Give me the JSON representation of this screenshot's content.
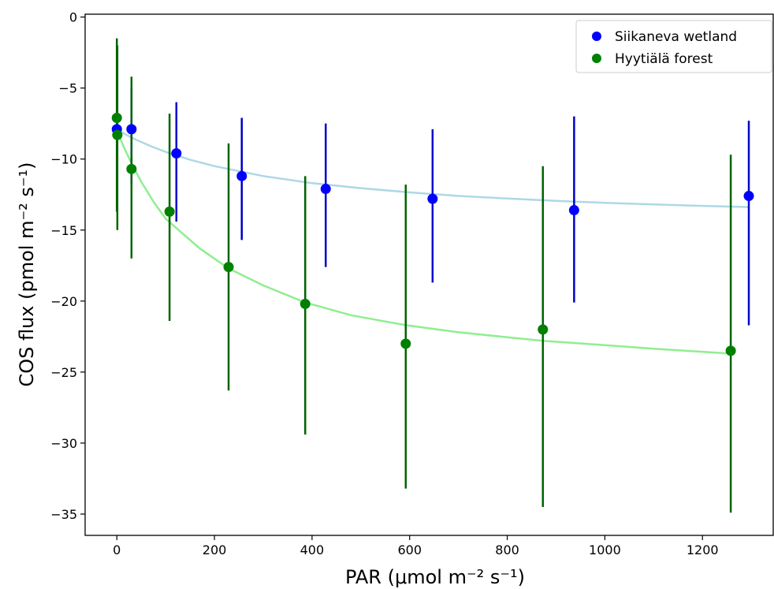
{
  "chart_data": {
    "type": "scatter",
    "xlabel": "PAR (μmol m⁻² s⁻¹)",
    "ylabel": "COS flux (pmol m⁻² s⁻¹)",
    "xlim": [
      -65,
      1345
    ],
    "ylim": [
      -36.5,
      0.2
    ],
    "x_ticks": [
      0,
      200,
      400,
      600,
      800,
      1000,
      1200
    ],
    "y_ticks": [
      0,
      -5,
      -10,
      -15,
      -20,
      -25,
      -30,
      -35
    ],
    "x_tick_labels": [
      "0",
      "200",
      "400",
      "600",
      "800",
      "1000",
      "1200"
    ],
    "y_tick_labels": [
      "0",
      "−5",
      "−10",
      "−15",
      "−20",
      "−25",
      "−30",
      "−35"
    ],
    "legend_position": "top-right",
    "grid": false,
    "series": [
      {
        "name": "Siikaneva wetland",
        "color": "#0000ff",
        "errorbar_color": "#0000cd",
        "fit_color": "#add8e6",
        "x": [
          0,
          30,
          122,
          256,
          428,
          647,
          937,
          1295
        ],
        "y": [
          -7.9,
          -7.9,
          -9.6,
          -11.2,
          -12.1,
          -12.8,
          -13.6,
          -12.6
        ],
        "yerr_low": [
          -13.7,
          -11.8,
          -14.4,
          -15.7,
          -17.6,
          -18.7,
          -20.1,
          -21.7
        ],
        "yerr_high": [
          -2.0,
          -5.0,
          -6.0,
          -7.1,
          -7.5,
          -7.9,
          -7.0,
          -7.3
        ],
        "fit": {
          "x": [
            0,
            20,
            40,
            70,
            100,
            150,
            200,
            300,
            400,
            500,
            600,
            700,
            800,
            900,
            1000,
            1100,
            1200,
            1295
          ],
          "y": [
            -7.9,
            -8.3,
            -8.65,
            -9.1,
            -9.5,
            -10.05,
            -10.5,
            -11.2,
            -11.7,
            -12.05,
            -12.35,
            -12.6,
            -12.78,
            -12.95,
            -13.08,
            -13.2,
            -13.3,
            -13.38
          ]
        }
      },
      {
        "name": "Hyytiälä forest",
        "color": "#008000",
        "errorbar_color": "#006400",
        "fit_color": "#90ee90",
        "x": [
          0,
          1,
          30,
          108,
          229,
          386,
          592,
          873,
          1258
        ],
        "y": [
          -7.1,
          -8.3,
          -10.7,
          -13.7,
          -17.6,
          -20.2,
          -23.0,
          -22.0,
          -23.5
        ],
        "yerr_low": [
          -13.7,
          -15.0,
          -17.0,
          -21.4,
          -26.3,
          -29.4,
          -33.2,
          -34.5,
          -34.9
        ],
        "yerr_high": [
          -1.5,
          -2.0,
          -4.2,
          -6.8,
          -8.9,
          -11.2,
          -11.8,
          -10.5,
          -9.7
        ],
        "fit": {
          "x": [
            0,
            15,
            30,
            50,
            75,
            100,
            130,
            170,
            229,
            300,
            386,
            480,
            592,
            700,
            873,
            1000,
            1100,
            1258
          ],
          "y": [
            -8.0,
            -9.2,
            -10.3,
            -11.6,
            -13.0,
            -14.2,
            -15.1,
            -16.3,
            -17.7,
            -18.9,
            -20.1,
            -21.0,
            -21.7,
            -22.2,
            -22.8,
            -23.1,
            -23.35,
            -23.7
          ]
        }
      }
    ]
  }
}
